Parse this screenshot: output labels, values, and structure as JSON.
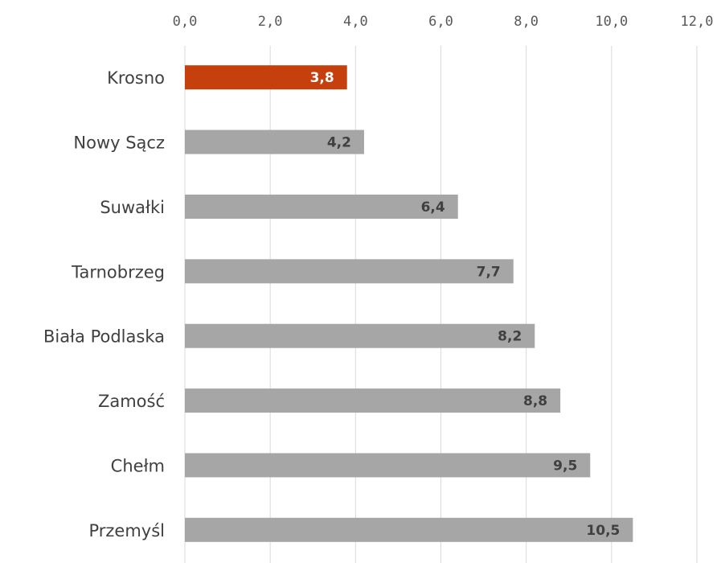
{
  "chart_data": {
    "type": "bar",
    "orientation": "horizontal",
    "categories": [
      "Krosno",
      "Nowy Sącz",
      "Suwałki",
      "Tarnobrzeg",
      "Biała Podlaska",
      "Zamość",
      "Chełm",
      "Przemyśl"
    ],
    "values": [
      3.8,
      4.2,
      6.4,
      7.7,
      8.2,
      8.8,
      9.5,
      10.5
    ],
    "value_labels": [
      "3,8",
      "4,2",
      "6,4",
      "7,7",
      "8,2",
      "8,8",
      "9,5",
      "10,5"
    ],
    "x_ticks": [
      0,
      2,
      4,
      6,
      8,
      10,
      12
    ],
    "x_tick_labels": [
      "0,0",
      "2,0",
      "4,0",
      "6,0",
      "8,0",
      "10,0",
      "12,0"
    ],
    "xlim": [
      0,
      12
    ],
    "x_axis_position": "top",
    "grid": true,
    "highlight_index": 0,
    "colors": {
      "highlight": "#c5400d",
      "default": "#a6a6a6",
      "highlight_label": "#ffffff",
      "default_label": "#404040",
      "grid": "#d9d9d9"
    }
  }
}
